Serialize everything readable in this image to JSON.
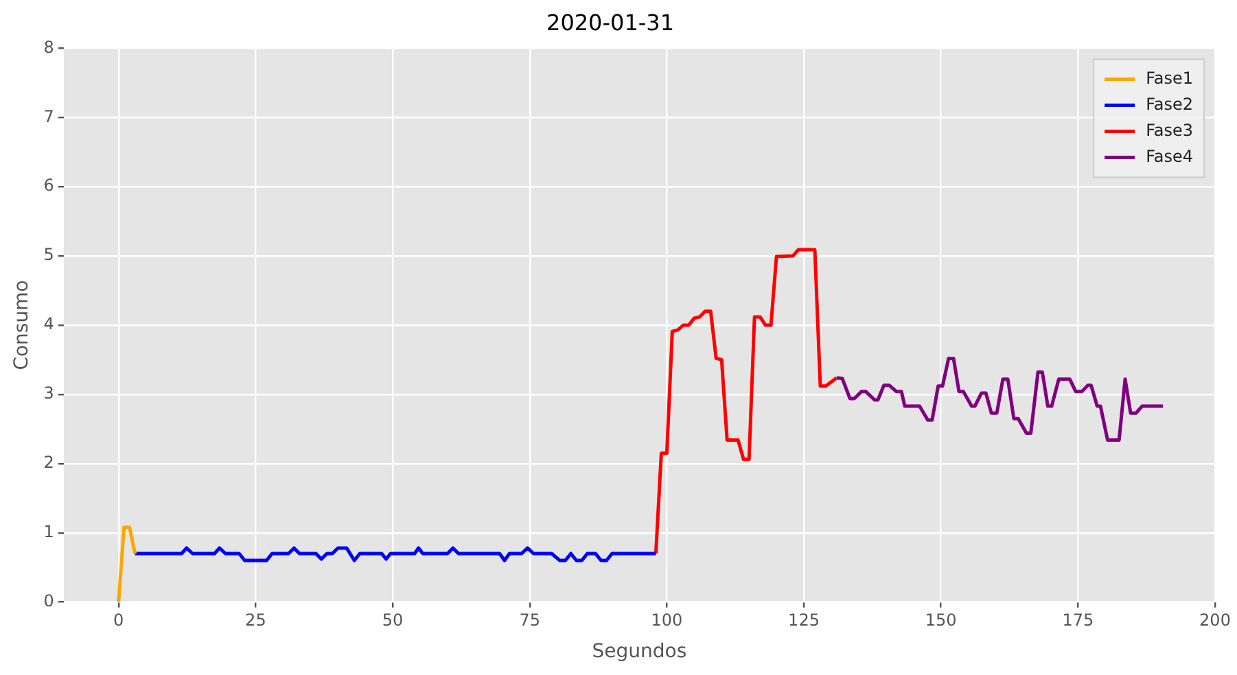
{
  "chart_data": {
    "type": "line",
    "title": "2020-01-31",
    "xlabel": "Segundos",
    "ylabel": "Consumo",
    "xlim": [
      -10,
      200
    ],
    "xticks": [
      0,
      25,
      50,
      75,
      100,
      125,
      150,
      175,
      200
    ],
    "ylim": [
      0,
      8
    ],
    "yticks": [
      0,
      1,
      2,
      3,
      4,
      5,
      6,
      7,
      8
    ],
    "grid": true,
    "legend": "top right",
    "series": [
      {
        "name": "Fase1",
        "color": "#ffa500",
        "x": [
          0,
          1,
          2,
          3
        ],
        "values": [
          0,
          1.08,
          1.08,
          0.7
        ]
      },
      {
        "name": "Fase2",
        "color": "#0000ff",
        "x": [
          3,
          11.5,
          12.4,
          13.5,
          17.5,
          18.4,
          19.5,
          22,
          23,
          27,
          28,
          31,
          32,
          33,
          36,
          37,
          38,
          39,
          40,
          41.6,
          43,
          44,
          48,
          48.8,
          49.6,
          54,
          54.7,
          55.5,
          60,
          61,
          62,
          69.5,
          70.4,
          71.3,
          73.5,
          74.6,
          75.7,
          79,
          80.5,
          81.5,
          82.5,
          83.5,
          84.5,
          85.5,
          87,
          88,
          89,
          90,
          98
        ],
        "values": [
          0.7,
          0.7,
          0.78,
          0.7,
          0.7,
          0.78,
          0.7,
          0.7,
          0.6,
          0.6,
          0.7,
          0.7,
          0.78,
          0.7,
          0.7,
          0.62,
          0.7,
          0.7,
          0.78,
          0.78,
          0.6,
          0.7,
          0.7,
          0.62,
          0.7,
          0.7,
          0.78,
          0.7,
          0.7,
          0.78,
          0.7,
          0.7,
          0.6,
          0.7,
          0.7,
          0.78,
          0.7,
          0.7,
          0.6,
          0.6,
          0.7,
          0.6,
          0.6,
          0.7,
          0.7,
          0.6,
          0.6,
          0.7,
          0.7
        ]
      },
      {
        "name": "Fase3",
        "color": "#ff0000",
        "x": [
          98,
          99,
          100,
          101,
          102,
          103,
          104,
          105,
          106,
          107,
          108,
          109,
          110,
          111,
          113,
          114,
          115,
          116,
          117,
          118,
          119,
          120,
          123,
          124,
          127,
          128,
          129,
          131
        ],
        "values": [
          0.7,
          2.15,
          2.15,
          3.91,
          3.93,
          4.0,
          4.0,
          4.1,
          4.12,
          4.2,
          4.2,
          3.52,
          3.5,
          2.34,
          2.34,
          2.06,
          2.06,
          4.12,
          4.12,
          4.0,
          4.0,
          4.99,
          5.0,
          5.09,
          5.09,
          3.12,
          3.12,
          3.24
        ]
      },
      {
        "name": "Fase4",
        "color": "#800080",
        "x": [
          131,
          132,
          133.4,
          134.2,
          135.5,
          136.3,
          137.9,
          138.5,
          139.6,
          140.6,
          141.9,
          142.8,
          143.4,
          146.1,
          147.6,
          148.4,
          149.5,
          150.3,
          151.4,
          152.3,
          153.3,
          154.1,
          155.6,
          156.2,
          157.4,
          158.2,
          159.2,
          160.2,
          161.3,
          162.2,
          163.3,
          164.1,
          165.6,
          166.4,
          167.7,
          168.5,
          169.5,
          170.2,
          171.5,
          173.5,
          174.6,
          175.7,
          176.8,
          177.4,
          178.5,
          179.1,
          180.4,
          182.5,
          183.6,
          184.6,
          185.6,
          186.7,
          190.5
        ],
        "values": [
          3.24,
          3.23,
          2.94,
          2.94,
          3.04,
          3.04,
          2.92,
          2.92,
          3.13,
          3.13,
          3.04,
          3.04,
          2.83,
          2.83,
          2.63,
          2.63,
          3.12,
          3.12,
          3.52,
          3.52,
          3.04,
          3.04,
          2.83,
          2.83,
          3.02,
          3.02,
          2.73,
          2.73,
          3.22,
          3.22,
          2.65,
          2.65,
          2.44,
          2.44,
          3.32,
          3.32,
          2.83,
          2.83,
          3.22,
          3.22,
          3.04,
          3.04,
          3.13,
          3.13,
          2.83,
          2.83,
          2.34,
          2.34,
          3.22,
          2.73,
          2.73,
          2.83,
          2.83
        ]
      }
    ]
  }
}
